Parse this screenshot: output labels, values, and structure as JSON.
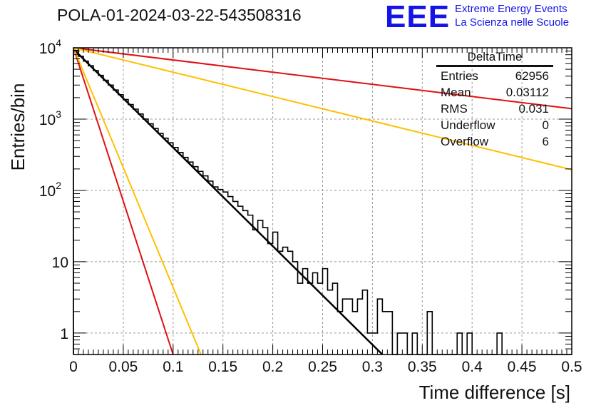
{
  "title": "POLA-01-2024-03-22-543508316",
  "logo": {
    "text": "EEE",
    "line1": "Extreme Energy Events",
    "line2": "La Scienza nelle Scuole",
    "color": "#1414e6"
  },
  "stats": {
    "title": "DeltaTime",
    "rows": [
      {
        "label": "Entries",
        "value": "62956"
      },
      {
        "label": "Mean",
        "value": "0.03112"
      },
      {
        "label": "RMS",
        "value": "0.031"
      },
      {
        "label": "Underflow",
        "value": "0"
      },
      {
        "label": "Overflow",
        "value": "6"
      }
    ]
  },
  "chart_data": {
    "type": "histogram",
    "xlabel": "Time difference [s]",
    "ylabel": "Entries/bin",
    "xlim": [
      0,
      0.5
    ],
    "ylim": [
      0.5,
      10000
    ],
    "yscale": "log",
    "grid": true,
    "x_ticks": [
      "0",
      "0.05",
      "0.1",
      "0.15",
      "0.2",
      "0.25",
      "0.3",
      "0.35",
      "0.4",
      "0.45",
      "0.5"
    ],
    "y_ticks": [
      {
        "value": 1,
        "label": "1"
      },
      {
        "value": 10,
        "label": "10"
      },
      {
        "value": 100,
        "label": "10",
        "exp": "2"
      },
      {
        "value": 1000,
        "label": "10",
        "exp": "3"
      },
      {
        "value": 10000,
        "label": "10",
        "exp": "4"
      }
    ],
    "bin_width": 0.005,
    "histogram": {
      "color": "#000000",
      "values": [
        9200,
        7600,
        6500,
        5600,
        4800,
        4100,
        3500,
        3000,
        2560,
        2200,
        1880,
        1600,
        1380,
        1180,
        1000,
        860,
        740,
        630,
        540,
        465,
        400,
        340,
        290,
        250,
        215,
        185,
        160,
        135,
        112,
        103,
        95,
        82,
        70,
        60,
        52,
        45,
        28,
        38,
        30,
        18,
        26,
        14,
        16,
        14,
        10,
        5,
        8,
        5,
        7,
        5,
        8,
        4,
        5,
        2,
        3,
        3,
        2,
        3,
        4,
        1,
        1,
        3,
        2,
        2,
        0,
        1,
        1,
        0,
        1,
        0,
        0,
        2,
        0,
        0,
        0,
        0,
        0,
        1,
        0,
        1,
        0,
        0,
        0,
        0,
        0,
        1,
        0,
        0,
        0,
        0,
        0,
        0,
        0,
        0,
        0,
        0,
        0,
        0,
        0,
        0
      ]
    },
    "series": [
      {
        "color": "#000000",
        "start": 9600,
        "end_x": 0.31,
        "end_y": 0.5
      },
      {
        "color": "#e01010",
        "start": 10000,
        "end_x": 0.5,
        "end_y": 1400
      },
      {
        "color": "#ffc000",
        "start": 10000,
        "end_x": 0.5,
        "end_y": 195
      },
      {
        "color": "#e01010",
        "start": 10000,
        "end_x": 0.1,
        "end_y": 0.5
      },
      {
        "color": "#ffc000",
        "start": 10000,
        "end_x": 0.128,
        "end_y": 0.5
      }
    ]
  }
}
